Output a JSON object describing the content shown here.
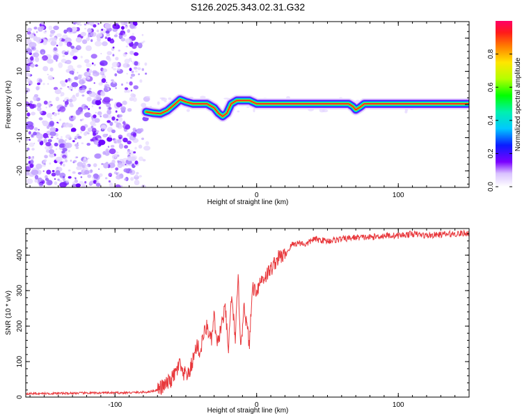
{
  "title": "S126.2025.343.02.31.G32",
  "chart_data": [
    {
      "type": "heatmap",
      "name": "spectrogram",
      "xlabel": "Height of straight line (km)",
      "ylabel": "Frequency (Hz)",
      "xlim": [
        -163,
        150
      ],
      "ylim": [
        -25,
        25
      ],
      "x_ticks": [
        -100,
        0,
        100
      ],
      "x_tick_labels": [
        "-100",
        "0",
        "100"
      ],
      "y_ticks": [
        -20,
        -10,
        0,
        10,
        20
      ],
      "y_tick_labels": [
        "-20",
        "-10",
        "0",
        "10",
        "20"
      ],
      "noise_region_x": [
        -163,
        -78
      ],
      "ridge": {
        "x": [
          -78,
          -73,
          -68,
          -63,
          -58,
          -54,
          -50,
          -45,
          -40,
          -35,
          -30,
          -27,
          -24,
          -21,
          -18,
          -14,
          -10,
          -5,
          0,
          10,
          30,
          50,
          65,
          68,
          70,
          73,
          76,
          80,
          100,
          120,
          150
        ],
        "y": [
          -2.2,
          -2.6,
          -2.8,
          -1.8,
          0.0,
          1.5,
          0.8,
          0.2,
          0.2,
          0.2,
          -1.0,
          -2.6,
          -3.6,
          -2.6,
          0.2,
          1.2,
          1.2,
          1.2,
          0.2,
          0.2,
          0.2,
          0.2,
          0.2,
          -0.6,
          -1.6,
          -0.8,
          0.2,
          0.2,
          0.2,
          0.2,
          0.2
        ]
      },
      "colorbar": {
        "label": "Normalized spectral amplitude",
        "range": [
          0,
          1
        ],
        "ticks": [
          0.0,
          0.2,
          0.4,
          0.6,
          0.8
        ],
        "tick_labels": [
          "0.0",
          "0.2",
          "0.4",
          "0.6",
          "0.8"
        ]
      }
    },
    {
      "type": "line",
      "name": "snr",
      "xlabel": "Height of straight line (km)",
      "ylabel": "SNR (10 * v/v)",
      "xlim": [
        -163,
        150
      ],
      "ylim": [
        0,
        475
      ],
      "x_ticks": [
        -100,
        0,
        100
      ],
      "x_tick_labels": [
        "-100",
        "0",
        "100"
      ],
      "y_ticks": [
        0,
        100,
        200,
        300,
        400
      ],
      "y_tick_labels": [
        "0",
        "100",
        "200",
        "300",
        "400"
      ],
      "color": "#e8383c",
      "series": [
        {
          "name": "SNR",
          "x": [
            -163,
            -150,
            -130,
            -110,
            -95,
            -85,
            -78,
            -72,
            -68,
            -64,
            -60,
            -57,
            -54,
            -52,
            -50,
            -48,
            -45,
            -42,
            -40,
            -38,
            -35,
            -32,
            -30,
            -28,
            -25,
            -22,
            -20,
            -18,
            -15,
            -13,
            -11,
            -9,
            -7,
            -5,
            -3,
            0,
            3,
            6,
            10,
            13,
            16,
            20,
            25,
            30,
            35,
            40,
            50,
            60,
            70,
            80,
            90,
            100,
            110,
            120,
            130,
            140,
            150
          ],
          "y": [
            10,
            10,
            11,
            12,
            12,
            13,
            14,
            18,
            25,
            35,
            50,
            70,
            95,
            55,
            70,
            60,
            105,
            150,
            120,
            170,
            200,
            155,
            230,
            140,
            200,
            250,
            120,
            285,
            170,
            330,
            130,
            270,
            200,
            150,
            310,
            300,
            330,
            340,
            360,
            380,
            395,
            400,
            430,
            435,
            430,
            445,
            440,
            445,
            450,
            450,
            455,
            455,
            460,
            455,
            458,
            460,
            462
          ]
        }
      ]
    }
  ]
}
